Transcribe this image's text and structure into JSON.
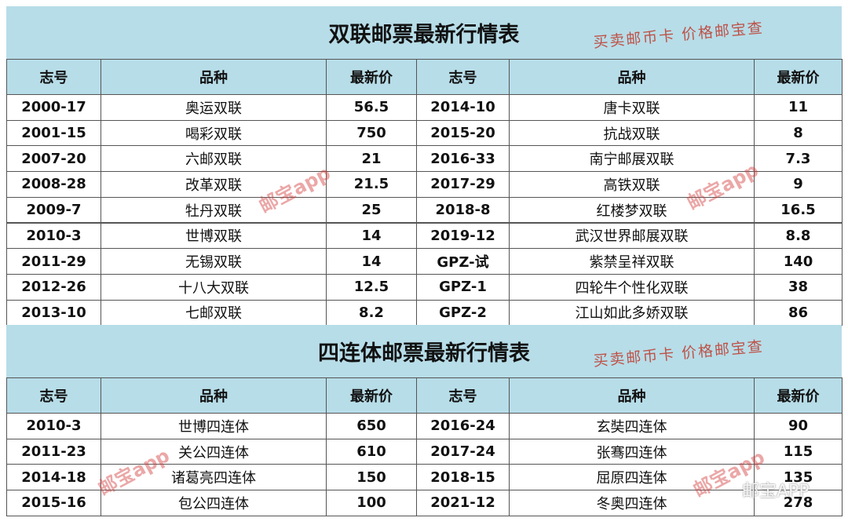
{
  "tables": [
    {
      "title": "双联邮票最新行情表",
      "stamp": "买卖邮币卡 价格邮宝查",
      "header": [
        "志号",
        "品种",
        "最新价",
        "志号",
        "品种",
        "最新价"
      ],
      "rows": [
        [
          "2000-17",
          "奥运双联",
          "56.5",
          "2014-10",
          "唐卡双联",
          "11"
        ],
        [
          "2001-15",
          "喝彩双联",
          "750",
          "2015-20",
          "抗战双联",
          "8"
        ],
        [
          "2007-20",
          "六邮双联",
          "21",
          "2016-33",
          "南宁邮展双联",
          "7.3"
        ],
        [
          "2008-28",
          "改革双联",
          "21.5",
          "2017-29",
          "高铁双联",
          "9"
        ],
        [
          "2009-7",
          "牡丹双联",
          "25",
          "2018-8",
          "红楼梦双联",
          "16.5"
        ],
        [
          "2010-3",
          "世博双联",
          "14",
          "2019-12",
          "武汉世界邮展双联",
          "8.8"
        ],
        [
          "2011-29",
          "无锡双联",
          "14",
          "GPZ-试",
          "紫禁呈祥双联",
          "140"
        ],
        [
          "2012-26",
          "十八大双联",
          "12.5",
          "GPZ-1",
          "四轮牛个性化双联",
          "38"
        ],
        [
          "2013-10",
          "七邮双联",
          "8.2",
          "GPZ-2",
          "江山如此多娇双联",
          "86"
        ]
      ]
    },
    {
      "title": "四连体邮票最新行情表",
      "stamp": "买卖邮币卡 价格邮宝查",
      "header": [
        "志号",
        "品种",
        "最新价",
        "志号",
        "品种",
        "最新价"
      ],
      "rows": [
        [
          "2010-3",
          "世博四连体",
          "650",
          "2016-24",
          "玄奘四连体",
          "90"
        ],
        [
          "2011-23",
          "关公四连体",
          "610",
          "2017-24",
          "张骞四连体",
          "115"
        ],
        [
          "2014-18",
          "诸葛亮四连体",
          "150",
          "2018-15",
          "屈原四连体",
          "135"
        ],
        [
          "2015-16",
          "包公四连体",
          "100",
          "2021-12",
          "冬奥四连体",
          "278"
        ]
      ]
    }
  ],
  "watermarks": [
    "邮宝app",
    "邮宝app",
    "邮宝app",
    "邮宝app"
  ],
  "footer_mark": "邮宝APP"
}
